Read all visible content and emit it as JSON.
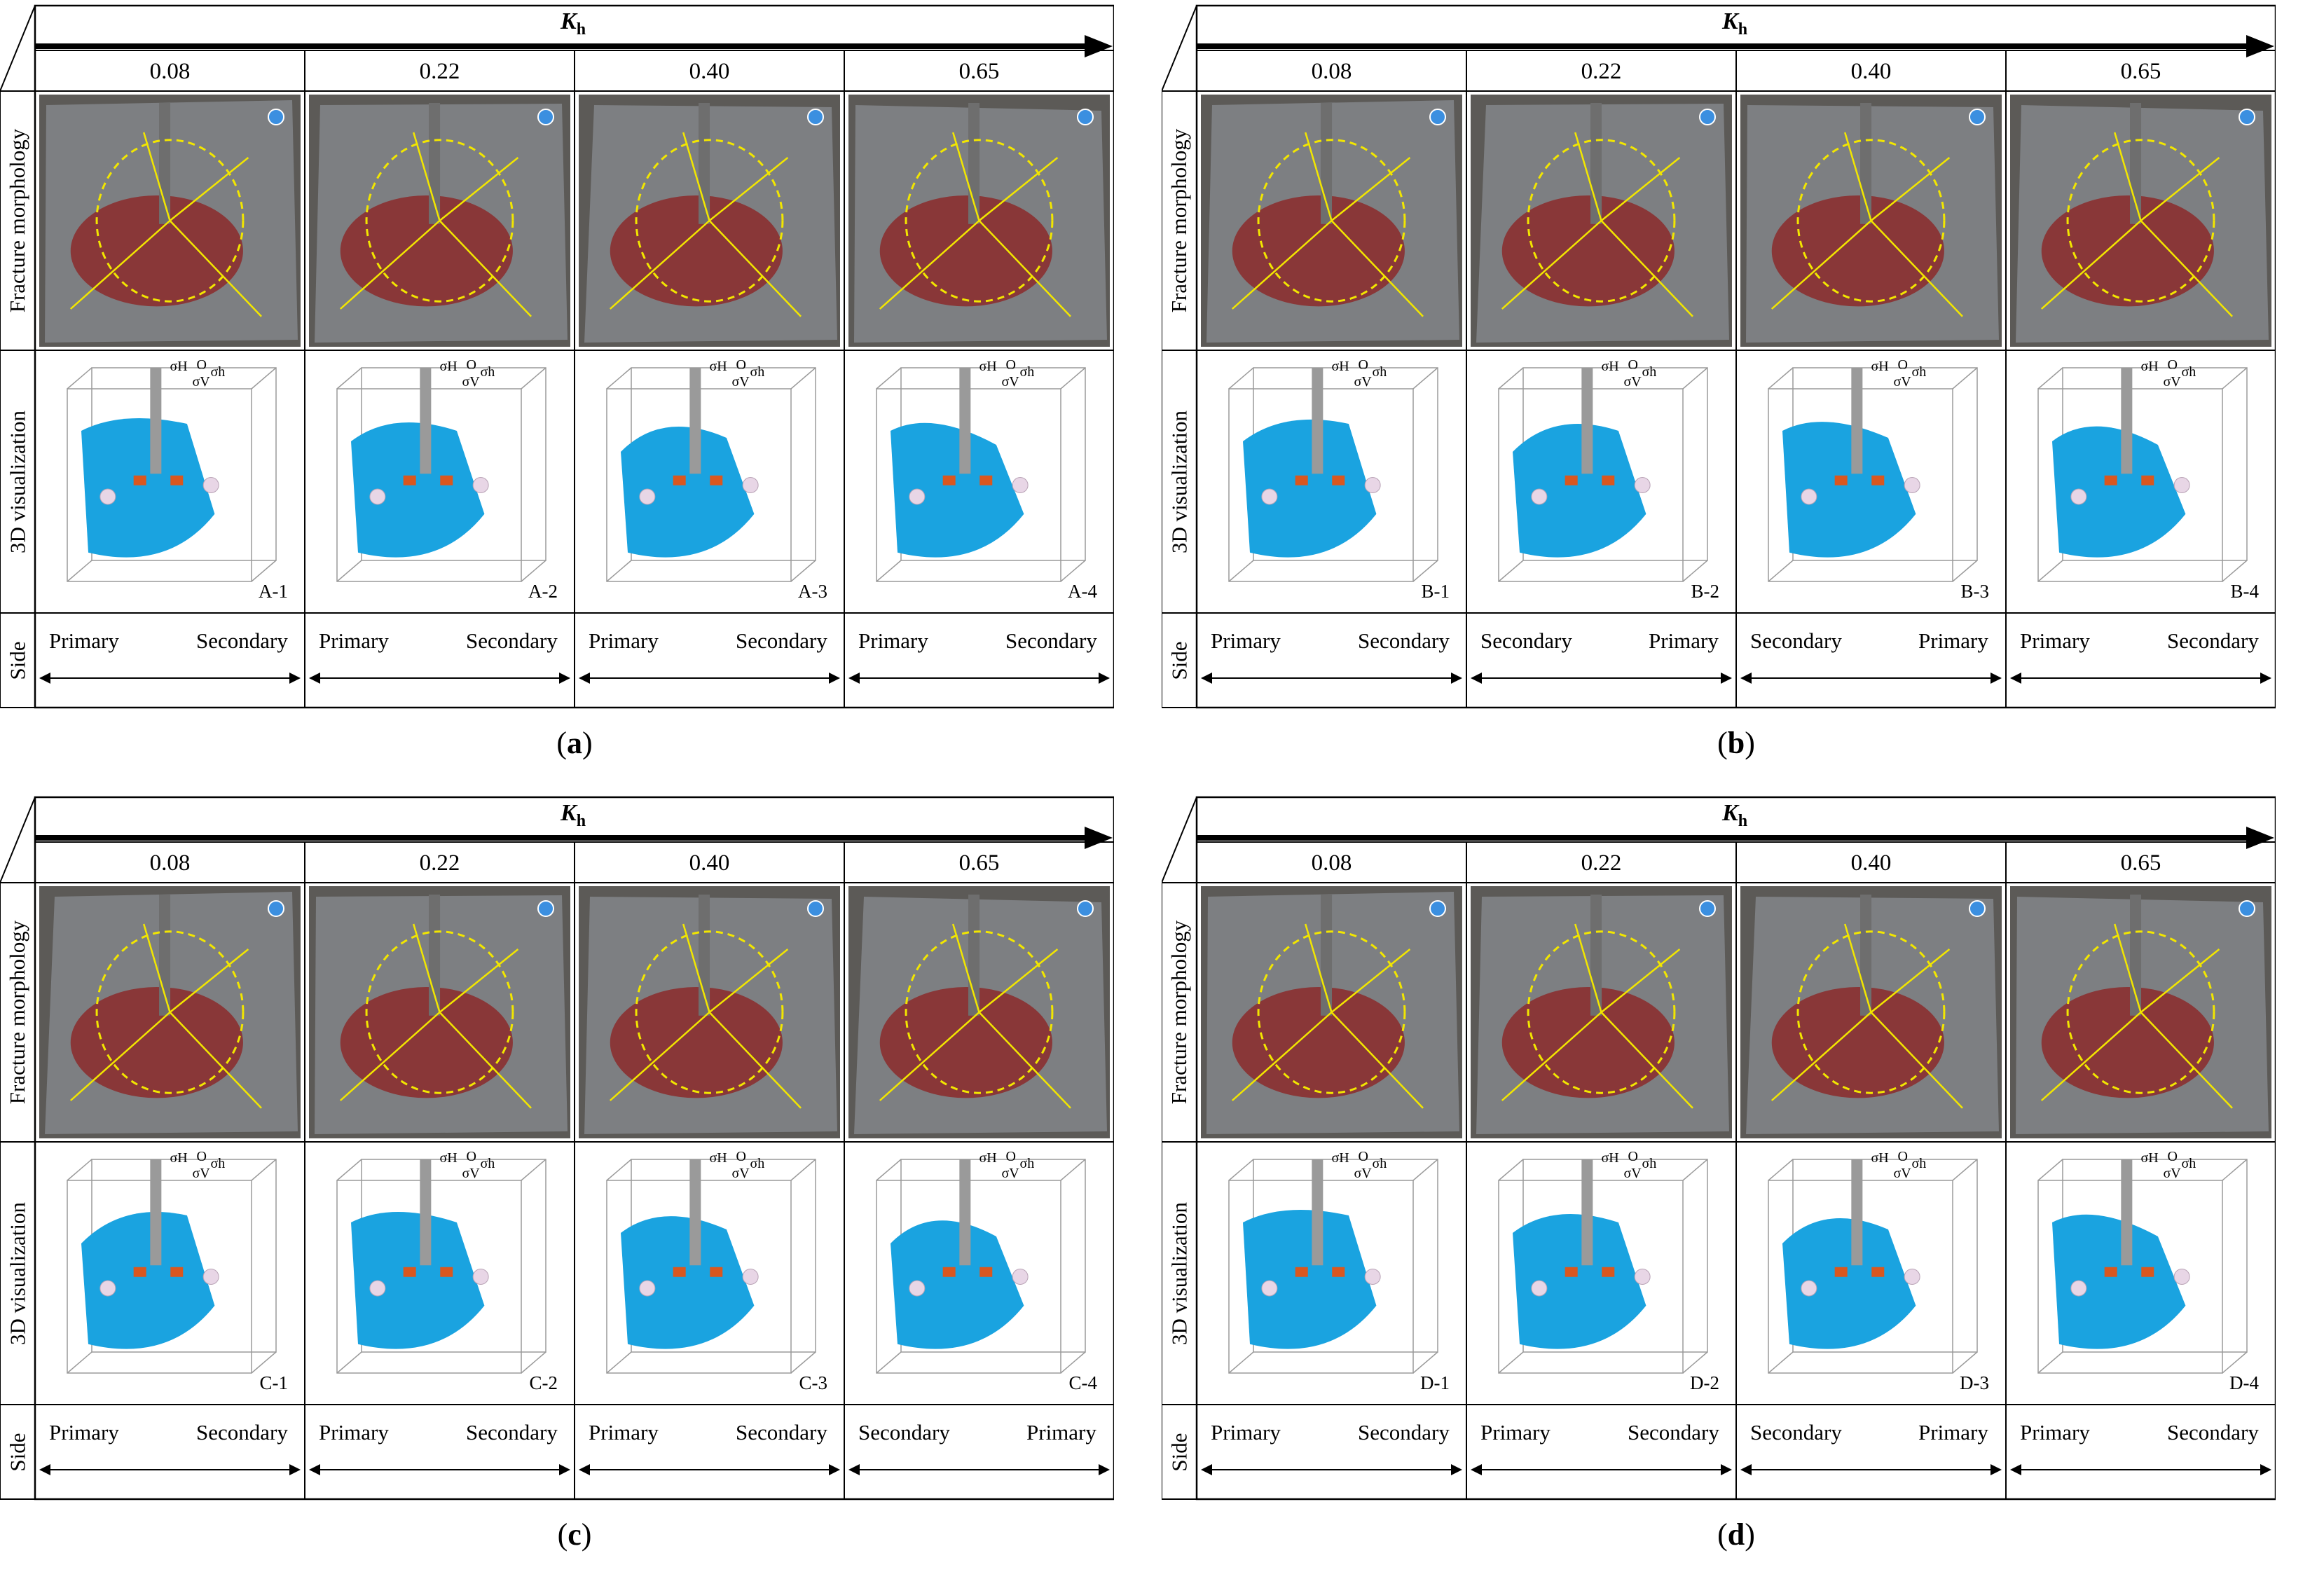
{
  "figure": {
    "axis_title": "K",
    "axis_title_sub": "h",
    "k_values": [
      "0.08",
      "0.22",
      "0.40",
      "0.65"
    ],
    "row_labels": {
      "fracture": "Fracture morphology",
      "viz": "3D visualization",
      "side": "Side"
    },
    "stress_symbols": {
      "H": "σH",
      "h": "σh",
      "V": "σV",
      "O": "O"
    },
    "panels": [
      {
        "caption": "a",
        "cells": [
          {
            "id": "A-1",
            "left": "Primary",
            "right": "Secondary"
          },
          {
            "id": "A-2",
            "left": "Primary",
            "right": "Secondary"
          },
          {
            "id": "A-3",
            "left": "Primary",
            "right": "Secondary"
          },
          {
            "id": "A-4",
            "left": "Primary",
            "right": "Secondary"
          }
        ]
      },
      {
        "caption": "b",
        "cells": [
          {
            "id": "B-1",
            "left": "Primary",
            "right": "Secondary"
          },
          {
            "id": "B-2",
            "left": "Secondary",
            "right": "Primary"
          },
          {
            "id": "B-3",
            "left": "Secondary",
            "right": "Primary"
          },
          {
            "id": "B-4",
            "left": "Primary",
            "right": "Secondary"
          }
        ]
      },
      {
        "caption": "c",
        "cells": [
          {
            "id": "C-1",
            "left": "Primary",
            "right": "Secondary"
          },
          {
            "id": "C-2",
            "left": "Primary",
            "right": "Secondary"
          },
          {
            "id": "C-3",
            "left": "Primary",
            "right": "Secondary"
          },
          {
            "id": "C-4",
            "left": "Secondary",
            "right": "Primary"
          }
        ]
      },
      {
        "caption": "d",
        "cells": [
          {
            "id": "D-1",
            "left": "Primary",
            "right": "Secondary"
          },
          {
            "id": "D-2",
            "left": "Primary",
            "right": "Secondary"
          },
          {
            "id": "D-3",
            "left": "Secondary",
            "right": "Primary"
          },
          {
            "id": "D-4",
            "left": "Primary",
            "right": "Secondary"
          }
        ]
      }
    ],
    "colors": {
      "fracture_surface": "#1aa3e0",
      "rock": "#7d7f82",
      "stain": "#8e1f1f",
      "annotation": "#f2e600",
      "packer": "#d9571f",
      "wellbore": "#9a9a9a",
      "sphere": "#e8d6e6"
    }
  }
}
